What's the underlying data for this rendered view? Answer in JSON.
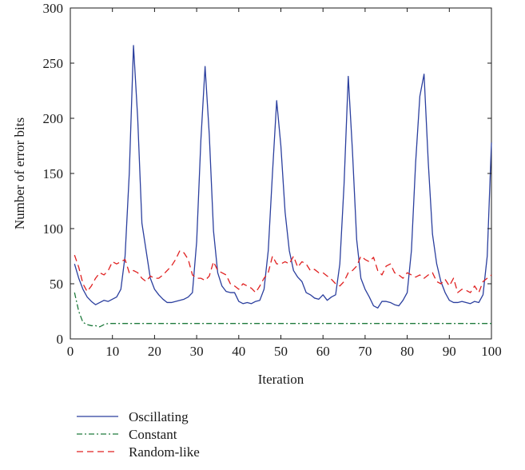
{
  "chart_data": {
    "type": "line",
    "title": "",
    "xlabel": "Iteration",
    "ylabel": "Number of error bits",
    "xlim": [
      0,
      100
    ],
    "ylim": [
      0,
      300
    ],
    "xticks": [
      0,
      10,
      20,
      30,
      40,
      50,
      60,
      70,
      80,
      90,
      100
    ],
    "yticks": [
      0,
      50,
      100,
      150,
      200,
      250,
      300
    ],
    "grid": false,
    "legend_position": "bottom-left, below plot",
    "series": [
      {
        "name": "Oscillating",
        "color": "#2b3f9e",
        "dash": "solid",
        "x": [
          1,
          2,
          3,
          4,
          5,
          6,
          7,
          8,
          9,
          10,
          11,
          12,
          13,
          14,
          15,
          16,
          17,
          18,
          19,
          20,
          21,
          22,
          23,
          24,
          25,
          26,
          27,
          28,
          29,
          30,
          31,
          32,
          33,
          34,
          35,
          36,
          37,
          38,
          39,
          40,
          41,
          42,
          43,
          44,
          45,
          46,
          47,
          48,
          49,
          50,
          51,
          52,
          53,
          54,
          55,
          56,
          57,
          58,
          59,
          60,
          61,
          62,
          63,
          64,
          65,
          66,
          67,
          68,
          69,
          70,
          71,
          72,
          73,
          74,
          75,
          76,
          77,
          78,
          79,
          80,
          81,
          82,
          83,
          84,
          85,
          86,
          87,
          88,
          89,
          90,
          91,
          92,
          93,
          94,
          95,
          96,
          97,
          98,
          99,
          100
        ],
        "values": [
          68,
          55,
          45,
          38,
          34,
          31,
          33,
          35,
          34,
          36,
          38,
          45,
          75,
          150,
          266,
          200,
          105,
          80,
          55,
          45,
          40,
          36,
          33,
          33,
          34,
          35,
          36,
          38,
          42,
          88,
          180,
          247,
          185,
          98,
          60,
          48,
          43,
          42,
          42,
          34,
          32,
          33,
          32,
          34,
          35,
          45,
          80,
          150,
          216,
          175,
          115,
          80,
          62,
          56,
          52,
          42,
          40,
          37,
          36,
          40,
          35,
          38,
          40,
          68,
          140,
          238,
          170,
          90,
          55,
          45,
          38,
          30,
          28,
          34,
          34,
          33,
          31,
          30,
          35,
          42,
          80,
          160,
          220,
          240,
          160,
          95,
          68,
          52,
          42,
          35,
          33,
          33,
          34,
          33,
          32,
          34,
          33,
          40,
          75,
          178
        ]
      },
      {
        "name": "Constant",
        "color": "#1e7a3c",
        "dash": "dash-dot",
        "x": [
          1,
          2,
          3,
          4,
          5,
          6,
          7,
          8,
          9,
          10,
          12,
          20,
          30,
          40,
          50,
          60,
          70,
          80,
          90,
          100
        ],
        "values": [
          42,
          25,
          15,
          13,
          12,
          12,
          11,
          13,
          14,
          14,
          14,
          14,
          14,
          14,
          14,
          14,
          14,
          14,
          14,
          14
        ]
      },
      {
        "name": "Random-like",
        "color": "#e02020",
        "dash": "dashed",
        "x": [
          1,
          2,
          3,
          4,
          5,
          6,
          7,
          8,
          9,
          10,
          11,
          12,
          13,
          14,
          15,
          16,
          17,
          18,
          19,
          20,
          21,
          22,
          23,
          24,
          25,
          26,
          27,
          28,
          29,
          30,
          31,
          32,
          33,
          34,
          35,
          36,
          37,
          38,
          39,
          40,
          41,
          42,
          43,
          44,
          45,
          46,
          47,
          48,
          49,
          50,
          51,
          52,
          53,
          54,
          55,
          56,
          57,
          58,
          59,
          60,
          61,
          62,
          63,
          64,
          65,
          66,
          67,
          68,
          69,
          70,
          71,
          72,
          73,
          74,
          75,
          76,
          77,
          78,
          79,
          80,
          81,
          82,
          83,
          84,
          85,
          86,
          87,
          88,
          89,
          90,
          91,
          92,
          93,
          94,
          95,
          96,
          97,
          98,
          99,
          100
        ],
        "values": [
          76,
          65,
          50,
          43,
          48,
          55,
          60,
          58,
          62,
          70,
          68,
          70,
          72,
          60,
          62,
          60,
          55,
          52,
          57,
          55,
          55,
          58,
          62,
          66,
          72,
          80,
          78,
          72,
          58,
          55,
          55,
          53,
          57,
          70,
          62,
          60,
          58,
          50,
          48,
          45,
          50,
          48,
          46,
          42,
          48,
          55,
          60,
          75,
          68,
          68,
          70,
          68,
          75,
          65,
          70,
          68,
          62,
          63,
          60,
          60,
          57,
          54,
          50,
          48,
          52,
          60,
          62,
          66,
          75,
          72,
          70,
          74,
          62,
          58,
          66,
          68,
          60,
          58,
          55,
          60,
          58,
          56,
          58,
          55,
          58,
          60,
          52,
          50,
          54,
          48,
          55,
          42,
          45,
          44,
          42,
          48,
          42,
          52,
          55,
          58
        ]
      }
    ]
  }
}
